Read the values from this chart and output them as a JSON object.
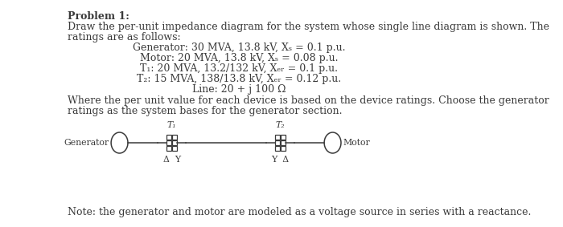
{
  "title": "Problem 1:",
  "line1": "Draw the per-unit impedance diagram for the system whose single line diagram is shown. The",
  "line2": "ratings are as follows:",
  "spec1": "Generator: 30 MVA, 13.8 kV, Xₛ = 0.1 p.u.",
  "spec2": "Motor: 20 MVA, 13.8 kV, Xₛ = 0.08 p.u.",
  "spec3": "T₁: 20 MVA, 13.2/132 kV, Xₑᵣ = 0.1 p.u.",
  "spec4": "T₂: 15 MVA, 138/13.8 kV, Xₑᵣ = 0.12 p.u.",
  "spec5": "Line: 20 + j 100 Ω",
  "line3": "Where the per unit value for each device is based on the device ratings. Choose the generator",
  "line4": "ratings as the system bases for the generator section.",
  "note": "Note: the generator and motor are modeled as a voltage source in series with a reactance.",
  "bg_color": "#ffffff",
  "text_color": "#3a3a3a",
  "gen_label": "Generator",
  "t1_label": "T₁",
  "t2_label": "T₂",
  "motor_label": "Motor",
  "delta_y": "Δ  Y",
  "y_delta": "Y  Δ"
}
